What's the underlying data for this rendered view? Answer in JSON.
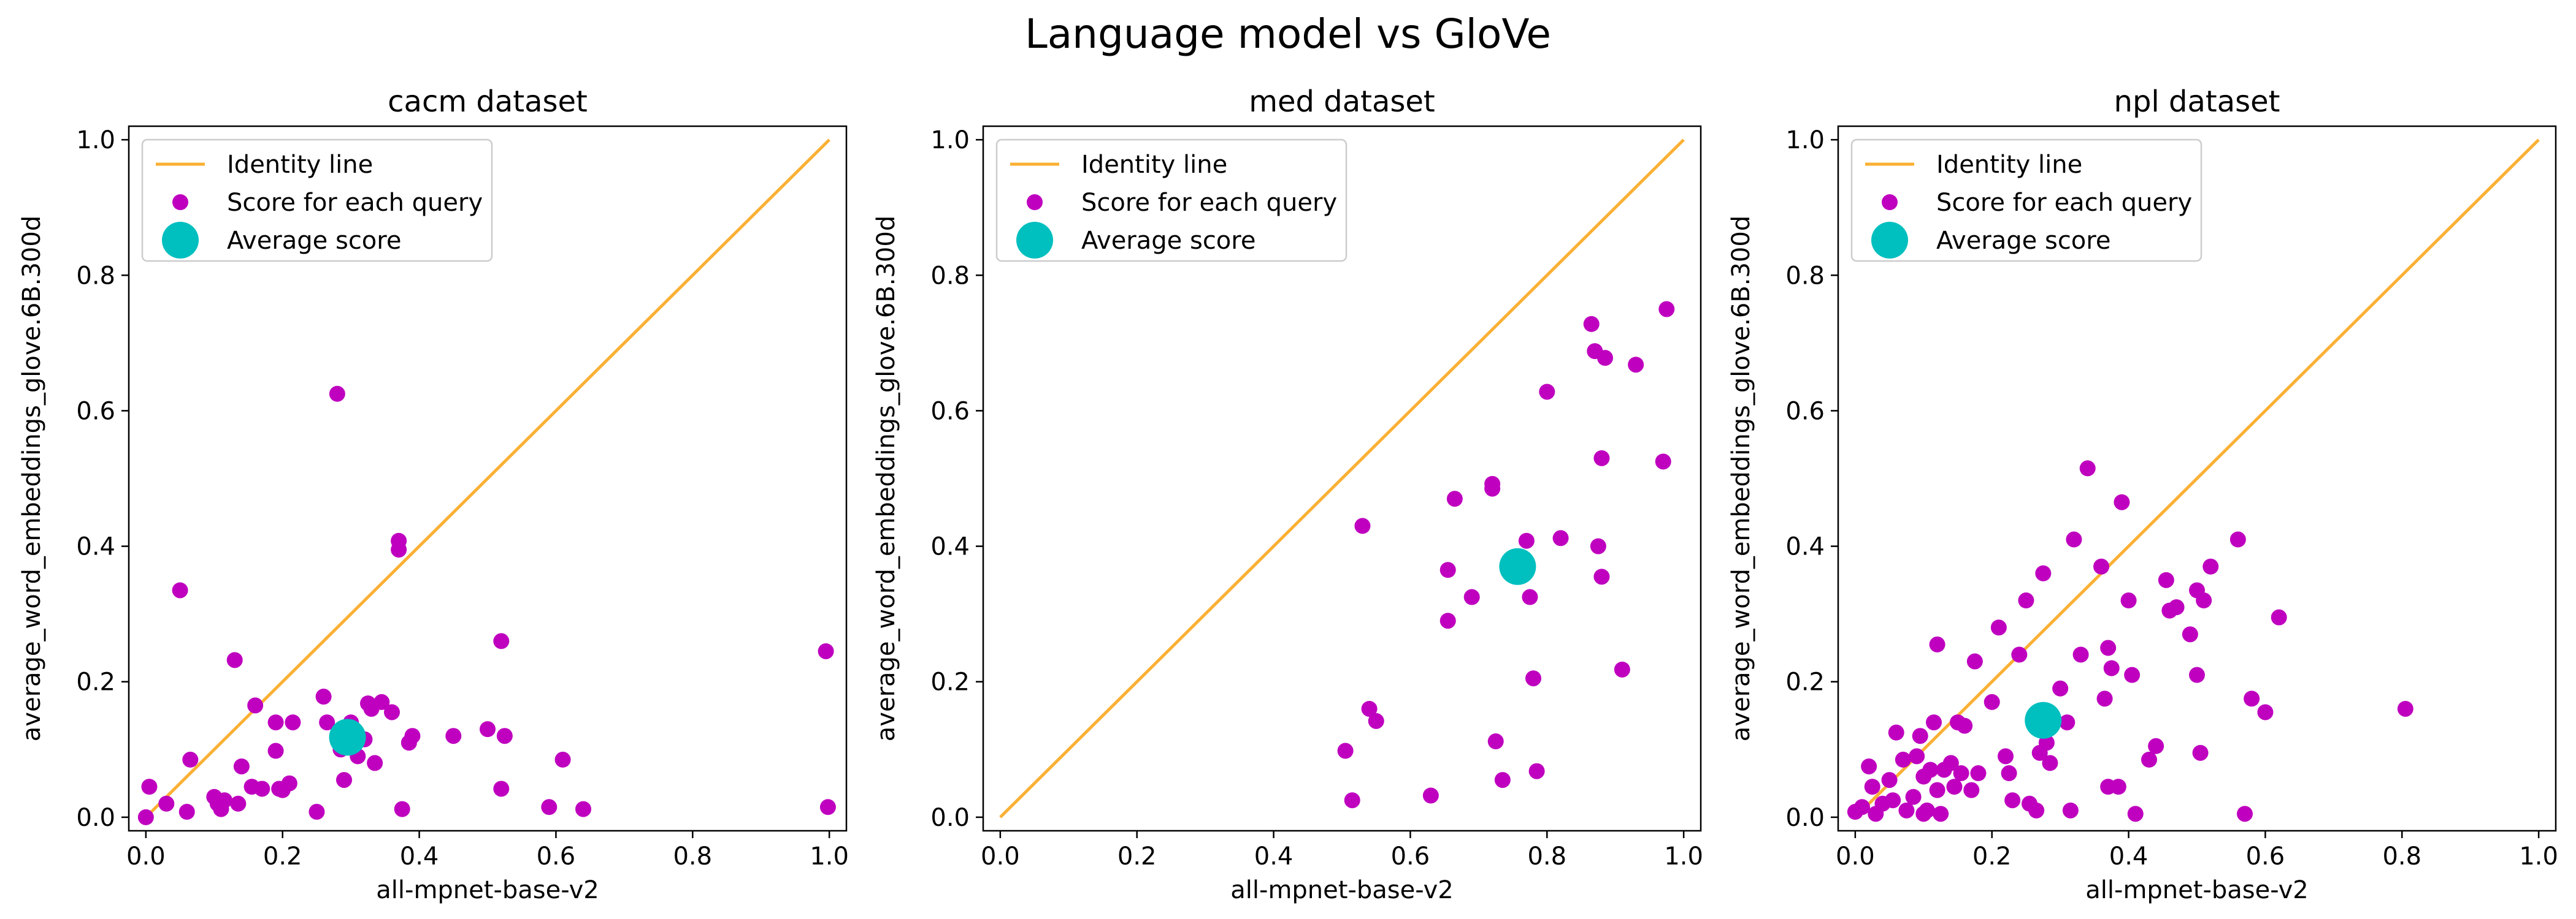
{
  "figure": {
    "title": "Language model vs GloVe"
  },
  "colors": {
    "identity_line": "#fbb034",
    "query_points": "#bf00bf",
    "average_point": "#00bfbf",
    "axes": "#000000",
    "legend_border": "#cccccc"
  },
  "legend": {
    "placement": "upper left",
    "entries": [
      "Identity line",
      "Score for each query",
      "Average score"
    ]
  },
  "chart_data": [
    {
      "type": "scatter",
      "title": "cacm dataset",
      "xlabel": "all-mpnet-base-v2",
      "ylabel": "average_word_embeddings_glove.6B.300d",
      "xlim": [
        -0.025,
        1.025
      ],
      "ylim": [
        -0.02,
        1.02
      ],
      "xticks": [
        "0.0",
        "0.2",
        "0.4",
        "0.6",
        "0.8",
        "1.0"
      ],
      "yticks": [
        "0.0",
        "0.2",
        "0.4",
        "0.6",
        "0.8",
        "1.0"
      ],
      "identity_line": {
        "name": "Identity line",
        "x": [
          0,
          1
        ],
        "y": [
          0,
          1
        ]
      },
      "series": [
        {
          "name": "Score for each query",
          "x": [
            0.0,
            0.005,
            0.03,
            0.05,
            0.06,
            0.065,
            0.1,
            0.105,
            0.11,
            0.115,
            0.13,
            0.135,
            0.14,
            0.155,
            0.16,
            0.17,
            0.19,
            0.19,
            0.195,
            0.2,
            0.21,
            0.215,
            0.25,
            0.26,
            0.265,
            0.28,
            0.285,
            0.29,
            0.295,
            0.3,
            0.31,
            0.32,
            0.325,
            0.33,
            0.335,
            0.345,
            0.36,
            0.37,
            0.37,
            0.375,
            0.385,
            0.39,
            0.45,
            0.5,
            0.52,
            0.52,
            0.525,
            0.59,
            0.61,
            0.64,
            0.995,
            0.998
          ],
          "y": [
            0.0,
            0.045,
            0.02,
            0.335,
            0.008,
            0.085,
            0.03,
            0.02,
            0.012,
            0.025,
            0.232,
            0.02,
            0.075,
            0.045,
            0.165,
            0.042,
            0.098,
            0.14,
            0.042,
            0.04,
            0.05,
            0.14,
            0.008,
            0.178,
            0.14,
            0.625,
            0.1,
            0.055,
            0.125,
            0.14,
            0.09,
            0.115,
            0.168,
            0.16,
            0.08,
            0.17,
            0.155,
            0.395,
            0.408,
            0.012,
            0.11,
            0.12,
            0.12,
            0.13,
            0.042,
            0.26,
            0.12,
            0.015,
            0.085,
            0.012,
            0.245,
            0.015
          ]
        },
        {
          "name": "Average score",
          "x": [
            0.295
          ],
          "y": [
            0.118
          ]
        }
      ]
    },
    {
      "type": "scatter",
      "title": "med dataset",
      "xlabel": "all-mpnet-base-v2",
      "ylabel": "average_word_embeddings_glove.6B.300d",
      "xlim": [
        -0.025,
        1.025
      ],
      "ylim": [
        -0.02,
        1.02
      ],
      "xticks": [
        "0.0",
        "0.2",
        "0.4",
        "0.6",
        "0.8",
        "1.0"
      ],
      "yticks": [
        "0.0",
        "0.2",
        "0.4",
        "0.6",
        "0.8",
        "1.0"
      ],
      "identity_line": {
        "name": "Identity line",
        "x": [
          0,
          1
        ],
        "y": [
          0,
          1
        ]
      },
      "series": [
        {
          "name": "Score for each query",
          "x": [
            0.505,
            0.515,
            0.53,
            0.54,
            0.55,
            0.63,
            0.655,
            0.655,
            0.665,
            0.69,
            0.72,
            0.72,
            0.725,
            0.735,
            0.77,
            0.775,
            0.78,
            0.785,
            0.8,
            0.82,
            0.865,
            0.87,
            0.875,
            0.88,
            0.88,
            0.885,
            0.91,
            0.93,
            0.97,
            0.975
          ],
          "y": [
            0.098,
            0.025,
            0.43,
            0.16,
            0.142,
            0.032,
            0.365,
            0.29,
            0.47,
            0.325,
            0.492,
            0.485,
            0.112,
            0.055,
            0.408,
            0.325,
            0.205,
            0.068,
            0.628,
            0.412,
            0.728,
            0.688,
            0.4,
            0.355,
            0.53,
            0.678,
            0.218,
            0.668,
            0.525,
            0.75
          ]
        },
        {
          "name": "Average score",
          "x": [
            0.757
          ],
          "y": [
            0.37
          ]
        }
      ]
    },
    {
      "type": "scatter",
      "title": "npl dataset",
      "xlabel": "all-mpnet-base-v2",
      "ylabel": "average_word_embeddings_glove.6B.300d",
      "xlim": [
        -0.025,
        1.025
      ],
      "ylim": [
        -0.02,
        1.02
      ],
      "xticks": [
        "0.0",
        "0.2",
        "0.4",
        "0.6",
        "0.8",
        "1.0"
      ],
      "yticks": [
        "0.0",
        "0.2",
        "0.4",
        "0.6",
        "0.8",
        "1.0"
      ],
      "identity_line": {
        "name": "Identity line",
        "x": [
          0,
          1
        ],
        "y": [
          0,
          1
        ]
      },
      "series": [
        {
          "name": "Score for each query",
          "x": [
            0.0,
            0.01,
            0.02,
            0.025,
            0.03,
            0.04,
            0.05,
            0.055,
            0.06,
            0.07,
            0.075,
            0.085,
            0.09,
            0.095,
            0.1,
            0.1,
            0.105,
            0.11,
            0.115,
            0.12,
            0.12,
            0.125,
            0.13,
            0.14,
            0.145,
            0.15,
            0.155,
            0.16,
            0.17,
            0.175,
            0.18,
            0.2,
            0.21,
            0.22,
            0.225,
            0.23,
            0.24,
            0.25,
            0.255,
            0.265,
            0.27,
            0.275,
            0.28,
            0.285,
            0.29,
            0.3,
            0.31,
            0.315,
            0.32,
            0.33,
            0.34,
            0.36,
            0.365,
            0.37,
            0.37,
            0.375,
            0.385,
            0.39,
            0.4,
            0.405,
            0.41,
            0.43,
            0.44,
            0.455,
            0.46,
            0.47,
            0.49,
            0.5,
            0.5,
            0.505,
            0.51,
            0.52,
            0.56,
            0.57,
            0.58,
            0.6,
            0.62,
            0.805
          ],
          "y": [
            0.008,
            0.015,
            0.075,
            0.045,
            0.005,
            0.02,
            0.055,
            0.025,
            0.125,
            0.085,
            0.01,
            0.03,
            0.09,
            0.12,
            0.06,
            0.005,
            0.01,
            0.07,
            0.14,
            0.255,
            0.04,
            0.005,
            0.07,
            0.08,
            0.045,
            0.14,
            0.065,
            0.135,
            0.04,
            0.23,
            0.065,
            0.17,
            0.28,
            0.09,
            0.065,
            0.025,
            0.24,
            0.32,
            0.02,
            0.01,
            0.095,
            0.36,
            0.11,
            0.08,
            0.14,
            0.19,
            0.14,
            0.01,
            0.41,
            0.24,
            0.515,
            0.37,
            0.175,
            0.25,
            0.045,
            0.22,
            0.045,
            0.465,
            0.32,
            0.21,
            0.005,
            0.085,
            0.105,
            0.35,
            0.305,
            0.31,
            0.27,
            0.335,
            0.21,
            0.095,
            0.32,
            0.37,
            0.41,
            0.005,
            0.175,
            0.155,
            0.295,
            0.16
          ]
        },
        {
          "name": "Average score",
          "x": [
            0.275
          ],
          "y": [
            0.143
          ]
        }
      ]
    }
  ]
}
